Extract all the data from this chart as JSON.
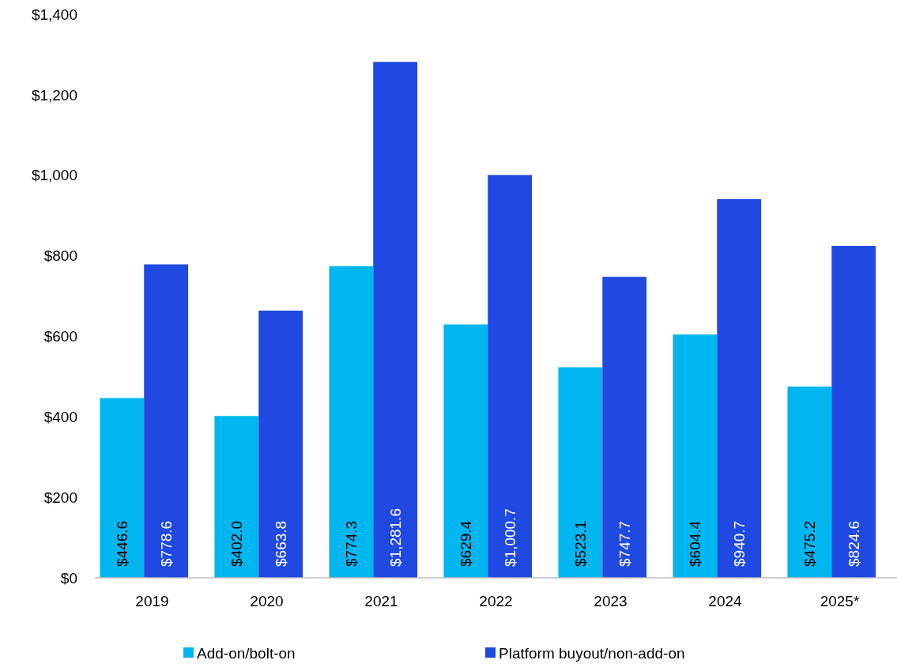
{
  "chart_data": {
    "type": "bar",
    "categories": [
      "2019",
      "2020",
      "2021",
      "2022",
      "2023",
      "2024",
      "2025*"
    ],
    "series": [
      {
        "name": "Add-on/bolt-on",
        "color": "#00b6f0",
        "values": [
          446.6,
          402.0,
          774.3,
          629.4,
          523.1,
          604.4,
          475.2
        ],
        "value_labels": [
          "$446.6",
          "$402.0",
          "$774.3",
          "$629.4",
          "$523.1",
          "$604.4",
          "$475.2"
        ]
      },
      {
        "name": "Platform buyout/non-add-on",
        "color": "#1f49e0",
        "values": [
          778.6,
          663.8,
          1281.6,
          1000.7,
          747.7,
          940.7,
          824.6
        ],
        "value_labels": [
          "$778.6",
          "$663.8",
          "$1,281.6",
          "$1,000.7",
          "$747.7",
          "$940.7",
          "$824.6"
        ]
      }
    ],
    "ylim": [
      0,
      1400
    ],
    "yticks": [
      {
        "value": 0,
        "label": "$0"
      },
      {
        "value": 200,
        "label": "$200"
      },
      {
        "value": 400,
        "label": "$400"
      },
      {
        "value": 600,
        "label": "$600"
      },
      {
        "value": 800,
        "label": "$800"
      },
      {
        "value": 1000,
        "label": "$1,000"
      },
      {
        "value": 1200,
        "label": "$1,200"
      },
      {
        "value": 1400,
        "label": "$1,400"
      }
    ],
    "grid": false,
    "legend": "bottom"
  }
}
